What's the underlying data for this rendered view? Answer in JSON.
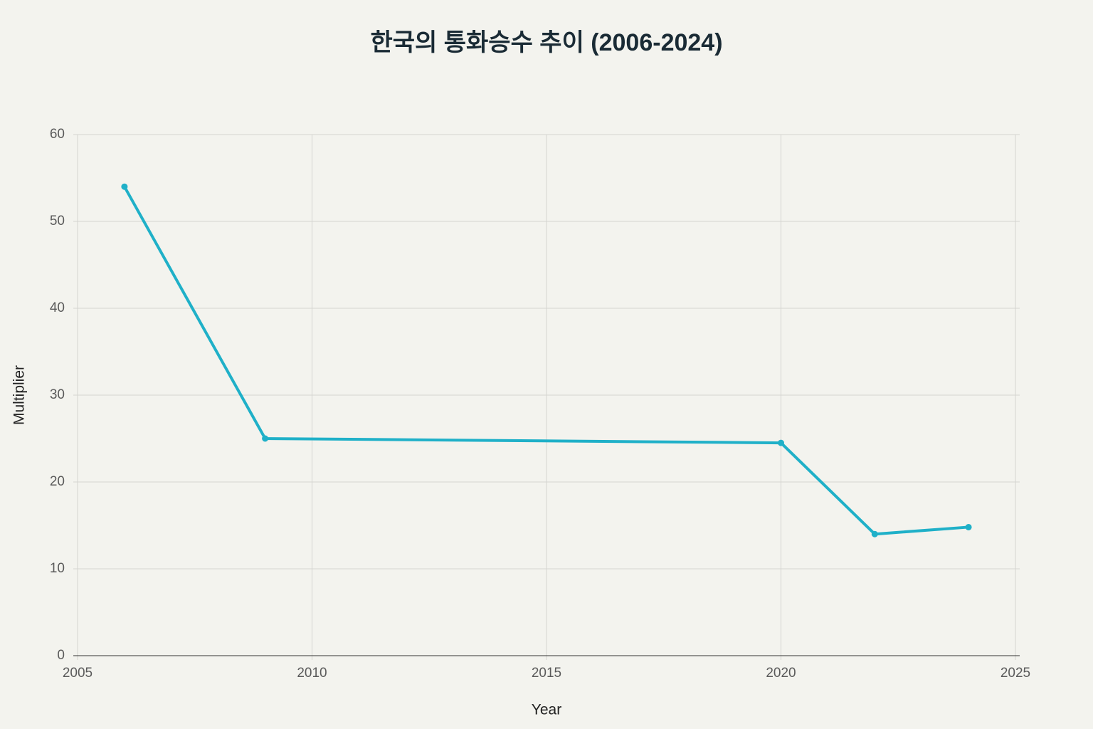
{
  "chart_data": {
    "type": "line",
    "title": "한국의 통화승수 추이 (2006-2024)",
    "x_label": "Year",
    "y_label": "Multiplier",
    "x": [
      2006,
      2009,
      2020,
      2022,
      2024
    ],
    "values": [
      54,
      25,
      24.5,
      14,
      14.8
    ],
    "color": "#1fb0c8",
    "xlim": [
      2005,
      2025
    ],
    "xticks": [
      2005,
      2010,
      2015,
      2020,
      2025
    ],
    "ylim": [
      0,
      60
    ],
    "yticks": [
      0,
      10,
      20,
      30,
      40,
      50,
      60
    ],
    "grid": true
  }
}
